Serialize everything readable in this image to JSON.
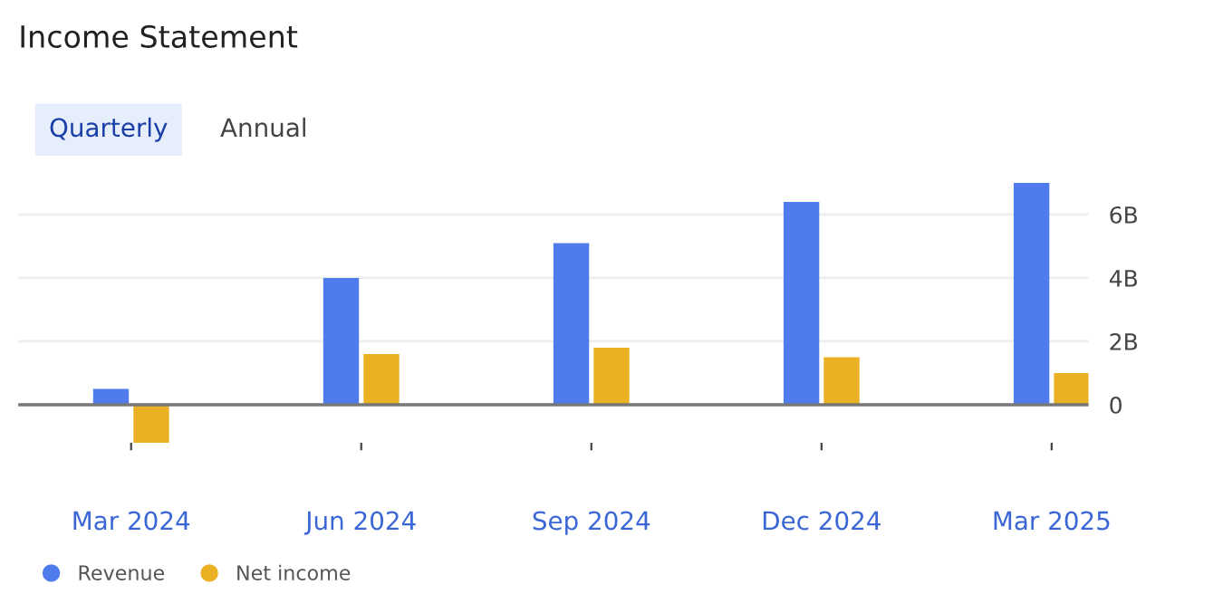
{
  "chart_data": {
    "type": "bar",
    "title": "Income Statement",
    "annotations": [
      "Quarterly",
      "Annual"
    ],
    "categories": [
      "Mar 2024",
      "Jun 2024",
      "Sep 2024",
      "Dec 2024",
      "Mar 2025"
    ],
    "series": [
      {
        "name": "Revenue",
        "color": "#4f7bec",
        "values": [
          0.5,
          4.0,
          5.1,
          6.4,
          7.0
        ]
      },
      {
        "name": "Net income",
        "color": "#e9b123",
        "values": [
          -1.2,
          1.6,
          1.8,
          1.5,
          1.0
        ]
      }
    ],
    "ylim": [
      -1.2,
      7.0
    ],
    "yticks": [
      0,
      {
        "value": 2,
        "label": "2B"
      },
      {
        "value": 4,
        "label": "4B"
      },
      {
        "value": 6,
        "label": "6B"
      }
    ],
    "ref_lines": [
      {
        "axis": "y",
        "value": 0,
        "label": null,
        "color": "#777777"
      }
    ],
    "grid": "y",
    "legend": "bottom left"
  }
}
